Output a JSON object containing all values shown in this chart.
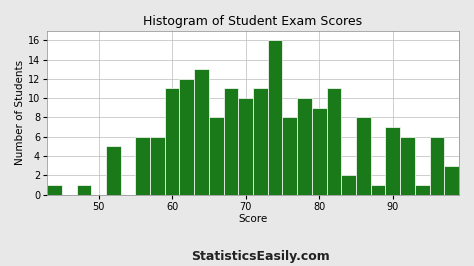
{
  "title": "Histogram of Student Exam Scores",
  "xlabel": "Score",
  "ylabel": "Number of Students",
  "watermark": "StatisticsEasily.com",
  "bar_color": "#1a7a1a",
  "bar_edge_color": "#ffffff",
  "background_color": "#e8e8e8",
  "plot_bg_color": "#ffffff",
  "xlim": [
    43,
    99
  ],
  "ylim": [
    0,
    17
  ],
  "xticks": [
    50,
    60,
    70,
    80,
    90
  ],
  "yticks": [
    0,
    2,
    4,
    6,
    8,
    10,
    12,
    14,
    16
  ],
  "bin_edges": [
    43,
    45,
    47,
    49,
    51,
    53,
    55,
    57,
    59,
    61,
    63,
    65,
    67,
    69,
    71,
    73,
    75,
    77,
    79,
    81,
    83,
    85,
    87,
    89,
    91,
    93,
    95,
    97,
    99
  ],
  "bar_heights": [
    1,
    0,
    1,
    0,
    5,
    0,
    6,
    6,
    11,
    12,
    13,
    8,
    11,
    10,
    11,
    16,
    8,
    10,
    9,
    11,
    2,
    8,
    1,
    7,
    6,
    1,
    6,
    3
  ],
  "title_fontsize": 9,
  "label_fontsize": 7.5,
  "tick_fontsize": 7,
  "watermark_fontsize": 9
}
